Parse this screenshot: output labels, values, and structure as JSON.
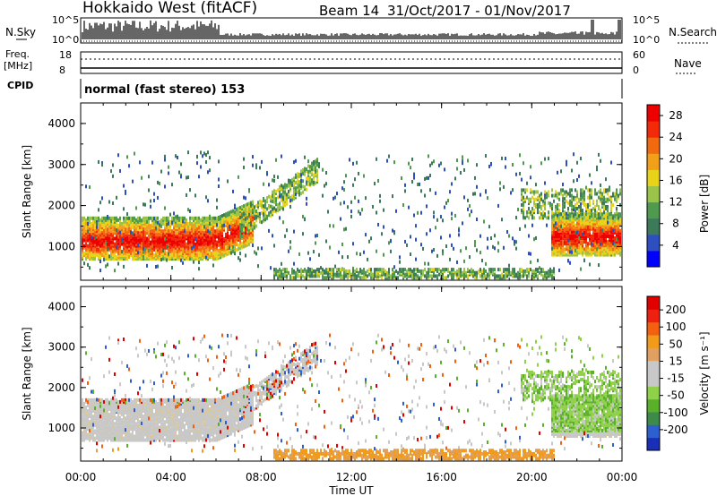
{
  "header": {
    "station": "Hokkaido West (fitACF)",
    "beam": "Beam 14",
    "date_range": "31/Oct/2017 - 01/Nov/2017",
    "left_labels": {
      "nsky": "N.Sky",
      "freq": "Freq.",
      "mhz": "[MHz]",
      "cpid": "CPID"
    },
    "right_labels": {
      "nsearch": "N.Search",
      "nave": "Nave"
    },
    "noise_ticks": {
      "top": "10^5",
      "bottom": "10^0"
    },
    "freq_ticks": {
      "top": "18",
      "bottom": "8"
    },
    "nave_ticks": {
      "top": "60",
      "bottom": "0"
    },
    "mode": "normal (fast stereo) 153"
  },
  "chart_data": [
    {
      "type": "heatmap",
      "name": "power",
      "ylabel": "Slant Range [km]",
      "xlabel": "Time UT",
      "ylim": [
        180,
        4500
      ],
      "y_ticks": [
        "1000",
        "2000",
        "3000",
        "4000"
      ],
      "x_ticks": [
        "00:00",
        "04:00",
        "08:00",
        "12:00",
        "16:00",
        "20:00",
        "00:00"
      ],
      "x_hours": [
        0,
        4,
        8,
        12,
        16,
        20,
        24
      ],
      "colorbar": {
        "label": "Power [dB]",
        "ticks": [
          "28",
          "24",
          "20",
          "16",
          "12",
          "8",
          "4"
        ],
        "tick_values": [
          28,
          24,
          20,
          16,
          12,
          8,
          4
        ],
        "range": [
          0,
          30
        ],
        "colors": [
          "#0000ff",
          "#2d4fbf",
          "#3d7a5a",
          "#4f9a4f",
          "#9ac34a",
          "#e8d21a",
          "#f2a01a",
          "#f26a10",
          "#f22a0a",
          "#ee0000"
        ]
      }
    },
    {
      "type": "heatmap",
      "name": "velocity",
      "ylabel": "Slant Range [km]",
      "xlabel": "Time UT",
      "ylim": [
        180,
        4500
      ],
      "y_ticks": [
        "1000",
        "2000",
        "3000",
        "4000"
      ],
      "x_ticks": [
        "00:00",
        "04:00",
        "08:00",
        "12:00",
        "16:00",
        "20:00",
        "00:00"
      ],
      "x_hours": [
        0,
        4,
        8,
        12,
        16,
        20,
        24
      ],
      "colorbar": {
        "label": "Velocity [m s⁻¹]",
        "ticks": [
          "200",
          "100",
          "50",
          "15",
          "-15",
          "-50",
          "-100",
          "-200"
        ],
        "colors": [
          "#1a2fb8",
          "#2d5fd0",
          "#3d8a4a",
          "#5ab02a",
          "#8fd24a",
          "#c8c8c8",
          "#c8c8c8",
          "#e0a060",
          "#f29a1a",
          "#f26010",
          "#ee2010",
          "#e00000"
        ]
      }
    }
  ],
  "time_axis_label": "Time UT"
}
